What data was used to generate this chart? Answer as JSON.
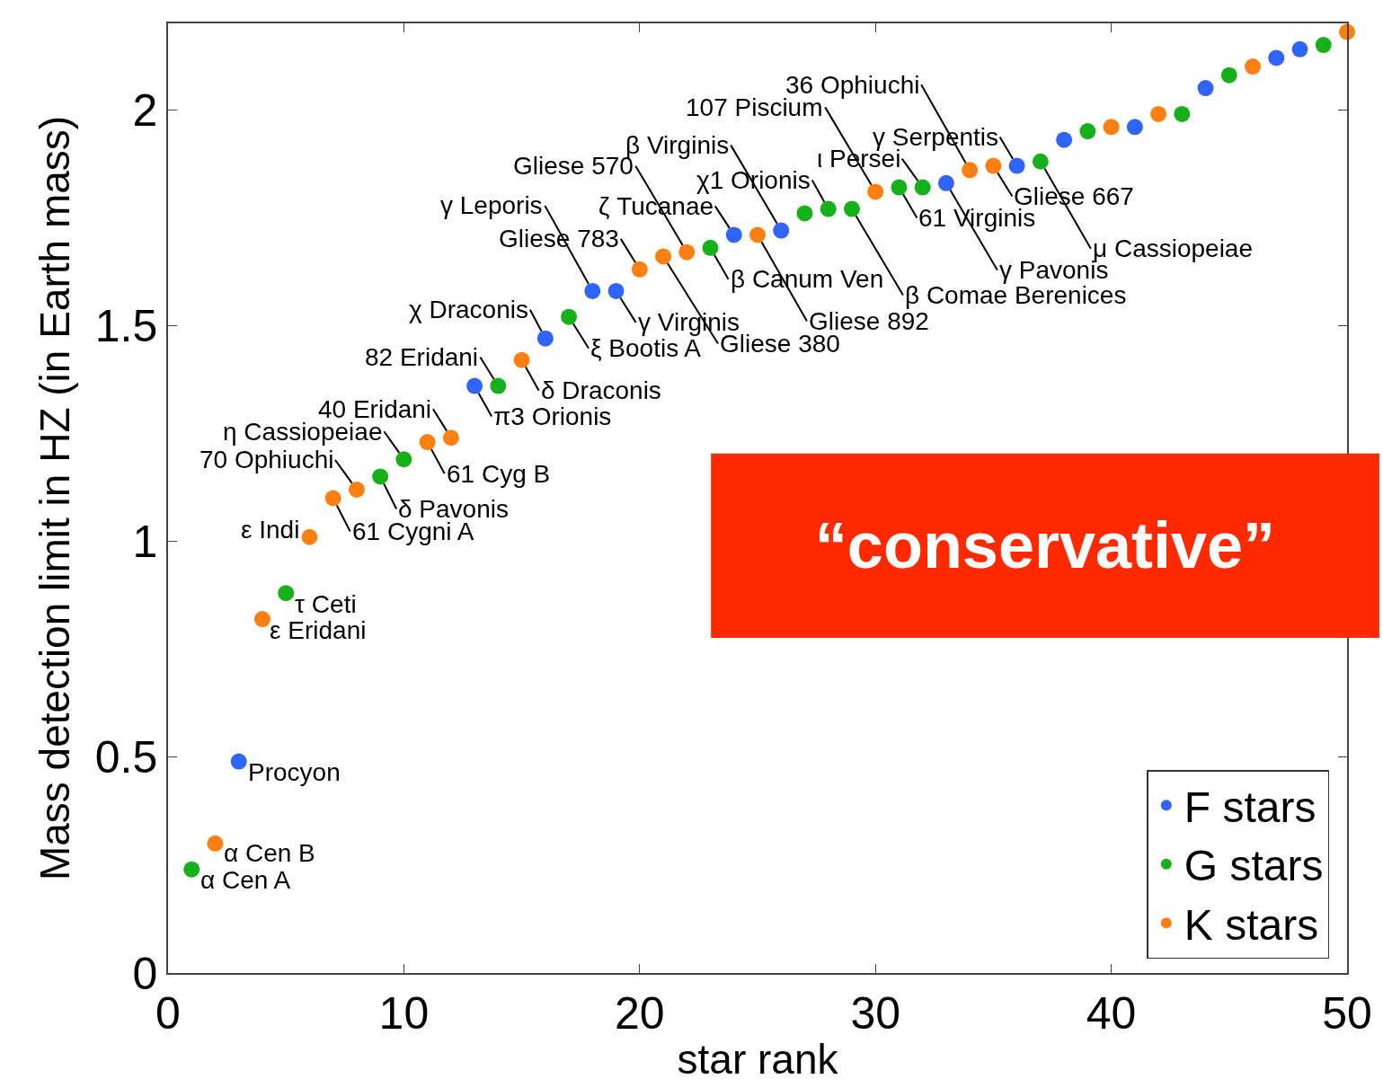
{
  "chart_data": {
    "type": "scatter",
    "xlabel": "star rank",
    "ylabel": "Mass detection limit in HZ (in Earth mass)",
    "xlim": [
      0,
      50
    ],
    "xticks": [
      0,
      10,
      20,
      30,
      40,
      50
    ],
    "ylim": [
      0,
      2.2
    ],
    "yticks": [
      0,
      0.5,
      1,
      1.5,
      2
    ],
    "grid": false,
    "legend": "bottom right",
    "marker": "circle",
    "series": [
      {
        "name": "F stars",
        "color": "#2f64ff",
        "x": [
          3,
          13,
          16,
          18,
          19,
          24,
          26,
          33,
          36,
          38,
          41,
          44,
          47,
          48
        ],
        "values": [
          0.49,
          1.36,
          1.47,
          1.58,
          1.58,
          1.71,
          1.72,
          1.83,
          1.87,
          1.93,
          1.96,
          2.05,
          2.12,
          2.14
        ]
      },
      {
        "name": "G stars",
        "color": "#15b01a",
        "x": [
          1,
          5,
          9,
          10,
          14,
          17,
          23,
          27,
          28,
          29,
          31,
          32,
          37,
          39,
          43,
          45,
          49
        ],
        "values": [
          0.24,
          0.88,
          1.15,
          1.19,
          1.36,
          1.52,
          1.68,
          1.76,
          1.77,
          1.77,
          1.82,
          1.82,
          1.88,
          1.95,
          1.99,
          2.08,
          2.15
        ]
      },
      {
        "name": "K stars",
        "color": "#ff7f11",
        "x": [
          2,
          4,
          6,
          7,
          8,
          11,
          12,
          15,
          20,
          21,
          22,
          25,
          30,
          34,
          35,
          40,
          42,
          46,
          50
        ],
        "values": [
          0.3,
          0.82,
          1.01,
          1.1,
          1.12,
          1.23,
          1.24,
          1.42,
          1.63,
          1.66,
          1.67,
          1.71,
          1.81,
          1.86,
          1.87,
          1.96,
          1.99,
          2.1,
          2.18
        ]
      }
    ],
    "annotations": [
      {
        "text": "α Cen A",
        "x": 1,
        "y": 0.24
      },
      {
        "text": "α Cen B",
        "x": 2,
        "y": 0.3
      },
      {
        "text": "Procyon",
        "x": 3,
        "y": 0.49
      },
      {
        "text": "ε Eridani",
        "x": 4,
        "y": 0.82
      },
      {
        "text": "τ Ceti",
        "x": 5,
        "y": 0.88
      },
      {
        "text": "ε Indi",
        "x": 6,
        "y": 1.01
      },
      {
        "text": "61 Cygni A",
        "x": 7,
        "y": 1.1
      },
      {
        "text": "70 Ophiuchi",
        "x": 8,
        "y": 1.12
      },
      {
        "text": "δ Pavonis",
        "x": 9,
        "y": 1.15
      },
      {
        "text": "η Cassiopeiae",
        "x": 10,
        "y": 1.19
      },
      {
        "text": "61 Cyg B",
        "x": 11,
        "y": 1.23
      },
      {
        "text": "40 Eridani",
        "x": 12,
        "y": 1.24
      },
      {
        "text": "π3 Orionis",
        "x": 13,
        "y": 1.36
      },
      {
        "text": "82 Eridani",
        "x": 14,
        "y": 1.36
      },
      {
        "text": "δ Draconis",
        "x": 15,
        "y": 1.42
      },
      {
        "text": "χ Draconis",
        "x": 16,
        "y": 1.47
      },
      {
        "text": "ξ Bootis A",
        "x": 17,
        "y": 1.52
      },
      {
        "text": "γ Leporis",
        "x": 18,
        "y": 1.58
      },
      {
        "text": "γ Virginis",
        "x": 19,
        "y": 1.58
      },
      {
        "text": "Gliese 783",
        "x": 20,
        "y": 1.63
      },
      {
        "text": "Gliese 380",
        "x": 21,
        "y": 1.66
      },
      {
        "text": "Gliese 570",
        "x": 22,
        "y": 1.67
      },
      {
        "text": "β Canum Ven",
        "x": 23,
        "y": 1.68
      },
      {
        "text": "ζ Tucanae",
        "x": 24,
        "y": 1.71
      },
      {
        "text": "Gliese 892",
        "x": 25,
        "y": 1.71
      },
      {
        "text": "β Virginis",
        "x": 26,
        "y": 1.72
      },
      {
        "text": "χ1 Orionis",
        "x": 28,
        "y": 1.77
      },
      {
        "text": "β Comae Berenices",
        "x": 29,
        "y": 1.77
      },
      {
        "text": "107 Piscium",
        "x": 30,
        "y": 1.81
      },
      {
        "text": "61 Virginis",
        "x": 31,
        "y": 1.82
      },
      {
        "text": "ι Persei",
        "x": 32,
        "y": 1.82
      },
      {
        "text": "γ Pavonis",
        "x": 33,
        "y": 1.83
      },
      {
        "text": "36 Ophiuchi",
        "x": 34,
        "y": 1.86
      },
      {
        "text": "Gliese 667",
        "x": 35,
        "y": 1.87
      },
      {
        "text": "γ Serpentis",
        "x": 36,
        "y": 1.87
      },
      {
        "text": "μ Cassiopeiae",
        "x": 37,
        "y": 1.88
      },
      "“conservative”"
    ]
  }
}
